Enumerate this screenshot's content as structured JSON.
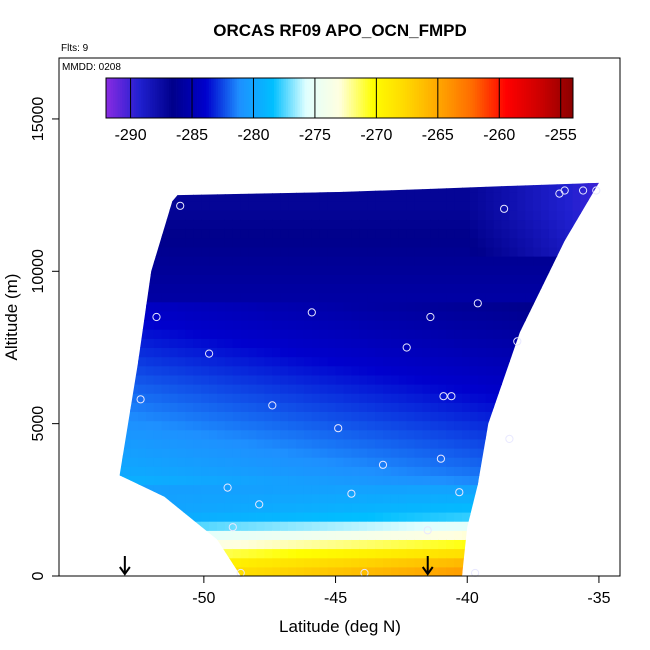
{
  "chart_data": {
    "type": "heatmap",
    "title": "ORCAS RF09 APO_OCN_FMPD",
    "xlabel": "Latitude (deg N)",
    "ylabel": "Altitude (m)",
    "annotations": {
      "flts": "Flts: 9",
      "mmdd": "MMDD: 0208"
    },
    "xlim": [
      -55.5,
      -34.2
    ],
    "ylim": [
      0,
      17000
    ],
    "x_ticks": [
      -50,
      -45,
      -40,
      -35
    ],
    "x_tick_labels": [
      "-50",
      "-45",
      "-40",
      "-35"
    ],
    "y_ticks": [
      0,
      5000,
      10000,
      15000
    ],
    "y_tick_labels": [
      "0",
      "5000",
      "10000",
      "15000"
    ],
    "colorbar": {
      "range": [
        -292,
        -254
      ],
      "ticks": [
        -290,
        -285,
        -280,
        -275,
        -270,
        -265,
        -260,
        -255
      ],
      "tick_labels": [
        "-290",
        "-285",
        "-280",
        "-275",
        "-270",
        "-265",
        "-260",
        "-255"
      ],
      "colors": [
        "#8a2be2",
        "#2020d0",
        "#00008b",
        "#0000cd",
        "#1e90ff",
        "#00bfff",
        "#e0ffff",
        "#ffffe0",
        "#ffff00",
        "#ffd700",
        "#ffa500",
        "#ff6a00",
        "#ff0000",
        "#cd0000",
        "#8b0000"
      ]
    },
    "region": {
      "left_edge": [
        [
          -53.2,
          3300
        ],
        [
          -52.5,
          7000
        ],
        [
          -52.0,
          10000
        ],
        [
          -51.2,
          12300
        ],
        [
          -51.0,
          12500
        ]
      ],
      "top_edge": [
        [
          -51.0,
          12500
        ],
        [
          -45,
          12600
        ],
        [
          -41.5,
          12700
        ],
        [
          -38.5,
          12800
        ],
        [
          -35,
          12900
        ]
      ],
      "right_edge": [
        [
          -35,
          12900
        ],
        [
          -36.3,
          11000
        ],
        [
          -38.0,
          8000
        ],
        [
          -39.2,
          5000
        ],
        [
          -39.6,
          3000
        ],
        [
          -40.0,
          1600
        ],
        [
          -40.2,
          0
        ]
      ],
      "bottom_left": [
        [
          -53.2,
          3300
        ],
        [
          -51.5,
          2600
        ],
        [
          -49.5,
          1200
        ],
        [
          -48.6,
          0
        ]
      ]
    },
    "field_anchors": [
      {
        "alt": 0,
        "value": -266
      },
      {
        "alt": 500,
        "value": -268
      },
      {
        "alt": 1200,
        "value": -273
      },
      {
        "alt": 2000,
        "value": -279
      },
      {
        "alt": 3500,
        "value": -281
      },
      {
        "alt": 6000,
        "value": -283
      },
      {
        "alt": 9000,
        "value": -285.5
      },
      {
        "alt": 12000,
        "value": -287
      }
    ],
    "samples": [
      {
        "x": -50.9,
        "y": 12150
      },
      {
        "x": -38.6,
        "y": 12050
      },
      {
        "x": -36.5,
        "y": 12550
      },
      {
        "x": -36.3,
        "y": 12650
      },
      {
        "x": -35.6,
        "y": 12650
      },
      {
        "x": -35.1,
        "y": 12650
      },
      {
        "x": -51.8,
        "y": 8500
      },
      {
        "x": -45.9,
        "y": 8650
      },
      {
        "x": -41.4,
        "y": 8500
      },
      {
        "x": -39.6,
        "y": 8950
      },
      {
        "x": -38.1,
        "y": 7700
      },
      {
        "x": -49.8,
        "y": 7300
      },
      {
        "x": -42.3,
        "y": 7500
      },
      {
        "x": -52.4,
        "y": 5800
      },
      {
        "x": -47.4,
        "y": 5600
      },
      {
        "x": -40.9,
        "y": 5900
      },
      {
        "x": -40.6,
        "y": 5900
      },
      {
        "x": -44.9,
        "y": 4850
      },
      {
        "x": -38.4,
        "y": 4500
      },
      {
        "x": -41.0,
        "y": 3850
      },
      {
        "x": -43.2,
        "y": 3650
      },
      {
        "x": -49.1,
        "y": 2900
      },
      {
        "x": -44.4,
        "y": 2700
      },
      {
        "x": -40.3,
        "y": 2750
      },
      {
        "x": -47.9,
        "y": 2350
      },
      {
        "x": -48.9,
        "y": 1600
      },
      {
        "x": -41.5,
        "y": 1500
      },
      {
        "x": -48.6,
        "y": 100
      },
      {
        "x": -43.9,
        "y": 100
      },
      {
        "x": -39.7,
        "y": 100
      }
    ],
    "arrows": [
      {
        "x": -53.0
      },
      {
        "x": -41.5
      }
    ],
    "grid": false,
    "legend": "colorbar top inside plot"
  }
}
